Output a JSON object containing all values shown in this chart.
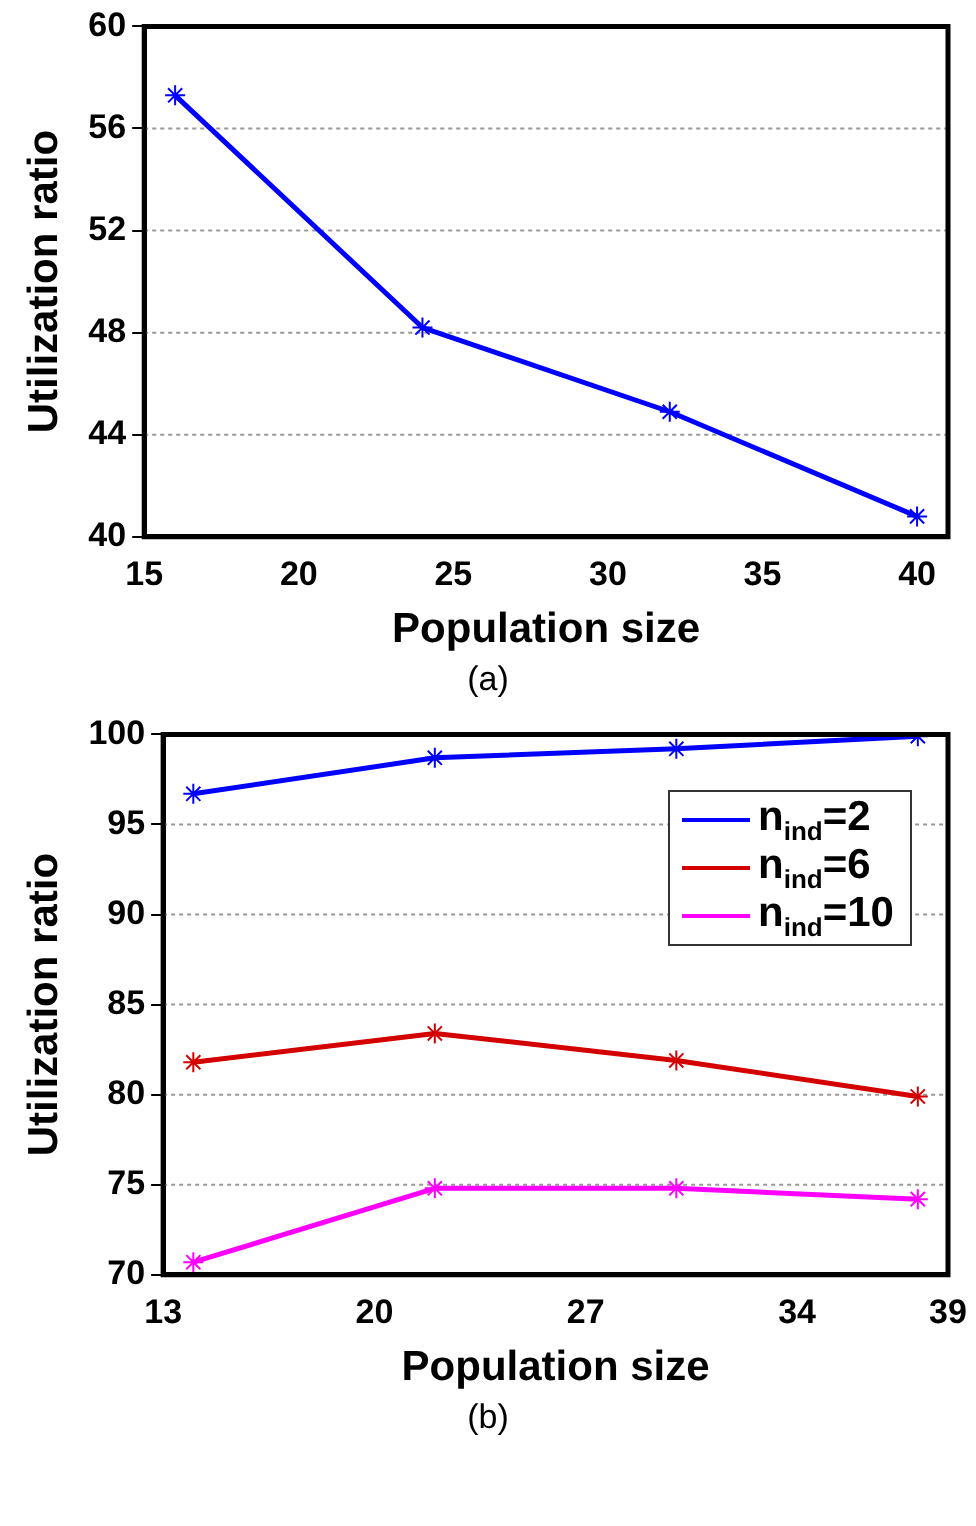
{
  "chart_data": [
    {
      "type": "line",
      "xlabel": "Population size",
      "ylabel": "Utilization ratio",
      "annotations": [
        "(a)"
      ],
      "xlim": [
        15,
        41
      ],
      "xticks": [
        15,
        20,
        25,
        30,
        35,
        40
      ],
      "ylim": [
        40,
        60
      ],
      "yticks": [
        40,
        44,
        48,
        52,
        56,
        60
      ],
      "grid": "y",
      "marker": "cross",
      "line_style": "solid",
      "legend": false,
      "series": [
        {
          "color": "#0000ff",
          "x": [
            16,
            24,
            32,
            40
          ],
          "values": [
            57.3,
            48.2,
            44.9,
            40.8
          ]
        }
      ]
    },
    {
      "type": "line",
      "xlabel": "Population size",
      "ylabel": "Utilization ratio",
      "annotations": [
        "(b)"
      ],
      "xlim": [
        13,
        39
      ],
      "xticks": [
        13,
        20,
        27,
        34,
        39
      ],
      "ylim": [
        70,
        100
      ],
      "yticks": [
        70,
        75,
        80,
        85,
        90,
        95,
        100
      ],
      "grid": "y",
      "marker": "cross",
      "line_style": "solid",
      "legend": "top right",
      "series": [
        {
          "name": "n$_{ind}$=2",
          "color": "#0000ff",
          "x": [
            14,
            22,
            30,
            38
          ],
          "values": [
            96.7,
            98.7,
            99.2,
            99.9
          ]
        },
        {
          "name": "n$_{ind}$=6",
          "color": "#d40000",
          "x": [
            14,
            22,
            30,
            38
          ],
          "values": [
            81.8,
            83.4,
            81.9,
            79.9
          ]
        },
        {
          "name": "n$_{ind}$=10",
          "color": "#ff00ff",
          "x": [
            14,
            22,
            30,
            38
          ],
          "values": [
            70.7,
            74.8,
            74.8,
            74.2
          ]
        }
      ]
    }
  ]
}
